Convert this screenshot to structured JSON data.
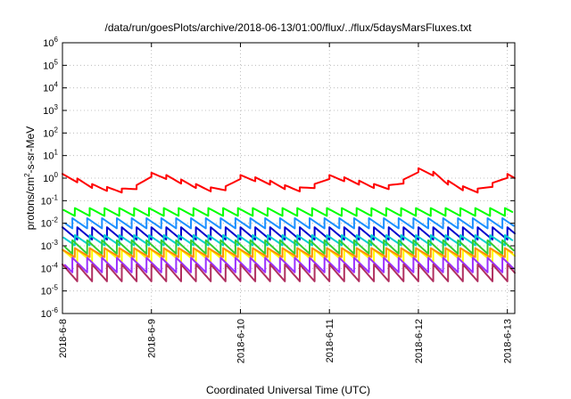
{
  "chart_data": {
    "type": "line",
    "title": "/data/run/goesPlots/archive/2018-06-13/01:00/flux/../flux/5daysMarsFluxes.txt",
    "xlabel": "Coordinated Universal Time (UTC)",
    "ylabel_parts": [
      "protons/cm",
      "2",
      "-s-sr-MeV"
    ],
    "x_range": [
      "2018-06-08T00:00",
      "2018-06-13T02:00"
    ],
    "x_ticks": [
      "2018-6-8",
      "2018-6-9",
      "2018-6-10",
      "2018-6-11",
      "2018-6-12",
      "2018-6-13"
    ],
    "y_scale": "log",
    "y_range": [
      1e-06,
      1000000.0
    ],
    "y_tick_exponents": [
      -6,
      -5,
      -4,
      -3,
      -2,
      -1,
      0,
      1,
      2,
      3,
      4,
      5,
      6
    ],
    "y_tick_base": "10",
    "grid": true,
    "sawtooth_period_hours": 4,
    "series": [
      {
        "color": "#ff0000",
        "smooth_log10": [
          [
            "2018-06-08T00:00",
            0.1
          ],
          [
            "2018-06-08T04:00",
            -0.1
          ],
          [
            "2018-06-08T08:00",
            -0.35
          ],
          [
            "2018-06-08T12:00",
            -0.48
          ],
          [
            "2018-06-08T16:00",
            -0.55
          ],
          [
            "2018-06-08T20:00",
            -0.4
          ],
          [
            "2018-06-09T00:00",
            0.15
          ],
          [
            "2018-06-09T04:00",
            0.05
          ],
          [
            "2018-06-09T08:00",
            -0.15
          ],
          [
            "2018-06-09T12:00",
            -0.35
          ],
          [
            "2018-06-09T16:00",
            -0.5
          ],
          [
            "2018-06-09T20:00",
            -0.45
          ],
          [
            "2018-06-10T00:00",
            0.05
          ],
          [
            "2018-06-10T04:00",
            -0.05
          ],
          [
            "2018-06-10T08:00",
            -0.2
          ],
          [
            "2018-06-10T12:00",
            -0.4
          ],
          [
            "2018-06-10T16:00",
            -0.5
          ],
          [
            "2018-06-10T20:00",
            -0.35
          ],
          [
            "2018-06-11T00:00",
            0.05
          ],
          [
            "2018-06-11T04:00",
            -0.05
          ],
          [
            "2018-06-11T08:00",
            -0.2
          ],
          [
            "2018-06-11T12:00",
            -0.35
          ],
          [
            "2018-06-11T16:00",
            -0.4
          ],
          [
            "2018-06-11T20:00",
            -0.15
          ],
          [
            "2018-06-12T00:00",
            0.35
          ],
          [
            "2018-06-12T04:00",
            0.2
          ],
          [
            "2018-06-12T08:00",
            -0.2
          ],
          [
            "2018-06-12T12:00",
            -0.45
          ],
          [
            "2018-06-12T16:00",
            -0.55
          ],
          [
            "2018-06-12T20:00",
            -0.3
          ],
          [
            "2018-06-13T00:00",
            0.1
          ],
          [
            "2018-06-13T02:00",
            0.0
          ]
        ],
        "sawtooth_amplitude_log10": 0.18
      },
      {
        "color": "#00ff00",
        "base_log10": -1.5,
        "sawtooth_amplitude_log10": 0.35
      },
      {
        "color": "#1e90ff",
        "base_log10": -2.0,
        "sawtooth_amplitude_log10": 0.45
      },
      {
        "color": "#0000cd",
        "base_log10": -2.45,
        "sawtooth_amplitude_log10": 0.55
      },
      {
        "color": "#00ced1",
        "base_log10": -2.75,
        "sawtooth_amplitude_log10": 0.45
      },
      {
        "color": "#32cd32",
        "base_log10": -3.05,
        "sawtooth_amplitude_log10": 0.6
      },
      {
        "color": "#ffff00",
        "base_log10": -3.45,
        "sawtooth_amplitude_log10": 0.55
      },
      {
        "color": "#ff8c00",
        "base_log10": -3.3,
        "sawtooth_amplitude_log10": 0.4
      },
      {
        "color": "#9b30ff",
        "base_log10": -3.85,
        "sawtooth_amplitude_log10": 0.65
      },
      {
        "color": "#b03060",
        "base_log10": -4.2,
        "sawtooth_amplitude_log10": 0.75
      }
    ]
  }
}
